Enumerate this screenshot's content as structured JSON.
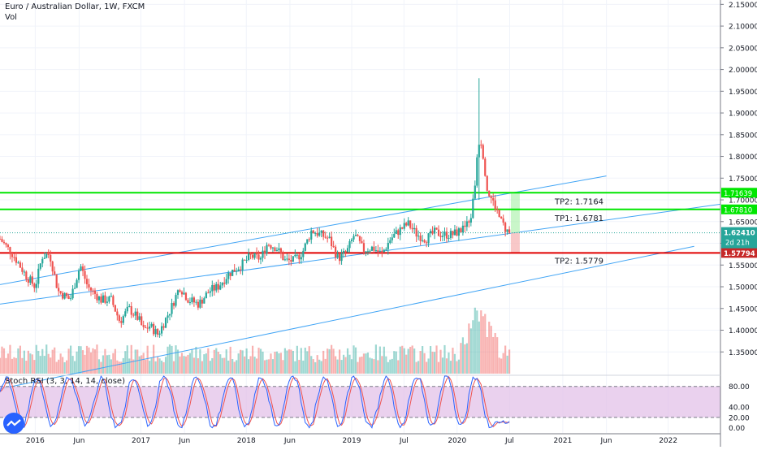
{
  "header": {
    "title": "Euro / Australian Dollar, 1W, FXCM",
    "volume_label": "Vol"
  },
  "colors": {
    "up": "#26a69a",
    "down": "#ef5350",
    "channel": "#42a5f5",
    "tp_line": "#00e600",
    "sl_line": "#e00000",
    "rsi_k": "#2962ff",
    "rsi_d": "#ef5350",
    "rsi_band": "#e1bee7"
  },
  "chart_data": [
    {
      "type": "candlestick",
      "title": "Euro / Australian Dollar, 1W, FXCM",
      "x_range": [
        "2015-09-01",
        "2022-07-01"
      ],
      "ylim": [
        1.3,
        2.16
      ],
      "y_ticks": [
        1.35,
        1.4,
        1.45,
        1.5,
        1.55,
        1.6,
        1.65,
        1.7,
        1.75,
        1.8,
        1.85,
        1.9,
        1.95,
        2.0,
        2.05,
        2.1,
        2.15
      ],
      "y_tick_labels": [
        "1.35000",
        "1.40000",
        "1.45000",
        "1.50000",
        "1.55000",
        "1.60000",
        "1.65000",
        "1.70000",
        "1.75000",
        "1.80000",
        "1.85000",
        "1.90000",
        "1.95000",
        "2.00000",
        "2.05000",
        "2.10000",
        "2.15000"
      ],
      "x_tick_labels": [
        {
          "label": "2016",
          "date": "2016-01-01"
        },
        {
          "label": "Jun",
          "date": "2016-06-01"
        },
        {
          "label": "2017",
          "date": "2017-01-01"
        },
        {
          "label": "Jun",
          "date": "2017-06-01"
        },
        {
          "label": "2018",
          "date": "2018-01-01"
        },
        {
          "label": "Jun",
          "date": "2018-06-01"
        },
        {
          "label": "2019",
          "date": "2019-01-01"
        },
        {
          "label": "Jul",
          "date": "2019-07-01"
        },
        {
          "label": "2020",
          "date": "2020-01-01"
        },
        {
          "label": "Jul",
          "date": "2020-07-01"
        },
        {
          "label": "2021",
          "date": "2021-01-01"
        },
        {
          "label": "Jun",
          "date": "2021-06-01"
        },
        {
          "label": "2022",
          "date": "2022-01-01"
        }
      ],
      "price_path": [
        [
          "2015-09-01",
          1.61
        ],
        [
          "2015-10-15",
          1.575
        ],
        [
          "2015-12-01",
          1.525
        ],
        [
          "2016-01-01",
          1.5
        ],
        [
          "2016-01-25",
          1.57
        ],
        [
          "2016-02-20",
          1.575
        ],
        [
          "2016-03-20",
          1.49
        ],
        [
          "2016-05-01",
          1.47
        ],
        [
          "2016-06-05",
          1.55
        ],
        [
          "2016-07-01",
          1.5
        ],
        [
          "2016-08-15",
          1.47
        ],
        [
          "2016-09-20",
          1.47
        ],
        [
          "2016-10-20",
          1.42
        ],
        [
          "2016-11-20",
          1.45
        ],
        [
          "2016-12-25",
          1.425
        ],
        [
          "2017-01-10",
          1.4
        ],
        [
          "2017-02-01",
          1.41
        ],
        [
          "2017-03-01",
          1.39
        ],
        [
          "2017-04-15",
          1.45
        ],
        [
          "2017-05-15",
          1.5
        ],
        [
          "2017-06-15",
          1.47
        ],
        [
          "2017-07-20",
          1.46
        ],
        [
          "2017-08-25",
          1.49
        ],
        [
          "2017-09-25",
          1.5
        ],
        [
          "2017-11-01",
          1.53
        ],
        [
          "2017-12-15",
          1.55
        ],
        [
          "2018-01-15",
          1.57
        ],
        [
          "2018-02-20",
          1.565
        ],
        [
          "2018-03-15",
          1.6
        ],
        [
          "2018-04-15",
          1.59
        ],
        [
          "2018-05-15",
          1.56
        ],
        [
          "2018-06-15",
          1.56
        ],
        [
          "2018-07-15",
          1.58
        ],
        [
          "2018-08-15",
          1.63
        ],
        [
          "2018-09-15",
          1.62
        ],
        [
          "2018-10-15",
          1.61
        ],
        [
          "2018-11-15",
          1.565
        ],
        [
          "2018-12-15",
          1.58
        ],
        [
          "2019-01-10",
          1.62
        ],
        [
          "2019-02-10",
          1.585
        ],
        [
          "2019-03-15",
          1.59
        ],
        [
          "2019-04-15",
          1.575
        ],
        [
          "2019-05-15",
          1.61
        ],
        [
          "2019-06-15",
          1.63
        ],
        [
          "2019-07-15",
          1.645
        ],
        [
          "2019-08-15",
          1.62
        ],
        [
          "2019-09-15",
          1.61
        ],
        [
          "2019-10-15",
          1.625
        ],
        [
          "2019-11-15",
          1.62
        ],
        [
          "2019-12-15",
          1.62
        ],
        [
          "2020-01-15",
          1.63
        ],
        [
          "2020-02-15",
          1.65
        ],
        [
          "2020-03-01",
          1.72
        ],
        [
          "2020-03-10",
          1.8
        ],
        [
          "2020-03-20",
          1.85
        ],
        [
          "2020-04-01",
          1.8
        ],
        [
          "2020-04-15",
          1.72
        ],
        [
          "2020-05-01",
          1.7
        ],
        [
          "2020-05-15",
          1.68
        ],
        [
          "2020-06-01",
          1.65
        ],
        [
          "2020-06-20",
          1.63
        ],
        [
          "2020-07-01",
          1.6241
        ]
      ],
      "spike": {
        "date": "2020-03-18",
        "high": 1.98,
        "low": 1.7
      },
      "current_price": {
        "value": 1.6241,
        "label": "1.62410",
        "countdown": "2d 21h"
      },
      "tp_lines": [
        {
          "label": "TP2: 1.7164",
          "value": 1.7164,
          "axis_label": "1.71639"
        },
        {
          "label": "TP1: 1.6781",
          "value": 1.6781,
          "axis_label": "1.67810"
        }
      ],
      "sl_line": {
        "label": "TP2: 1.5779",
        "value": 1.5779,
        "axis_label": "1.57794"
      },
      "channel_lines": [
        {
          "x1": "2015-09-01",
          "y1": 1.505,
          "x2": "2021-06-01",
          "y2": 1.755
        },
        {
          "x1": "2015-09-01",
          "y1": 1.46,
          "x2": "2022-07-01",
          "y2": 1.69
        },
        {
          "x1": "2015-09-01",
          "y1": 1.265,
          "x2": "2022-04-01",
          "y2": 1.593
        }
      ],
      "position_box": {
        "x_start": "2020-07-05",
        "x_end": "2020-08-05",
        "entry": 1.6241,
        "target": 1.7164,
        "stop": 1.5779
      }
    },
    {
      "type": "line",
      "title": "Stoch RSI (3, 3, 14, 14, close)",
      "ylim": [
        -10,
        100
      ],
      "y_ticks": [
        0,
        20,
        40,
        80
      ],
      "y_tick_labels": [
        "0.00",
        "20.00",
        "40.00",
        "80.00"
      ],
      "upper_band": 80,
      "lower_band": 20,
      "series": [
        {
          "name": "K",
          "values": []
        },
        {
          "name": "D",
          "values": []
        }
      ]
    }
  ]
}
